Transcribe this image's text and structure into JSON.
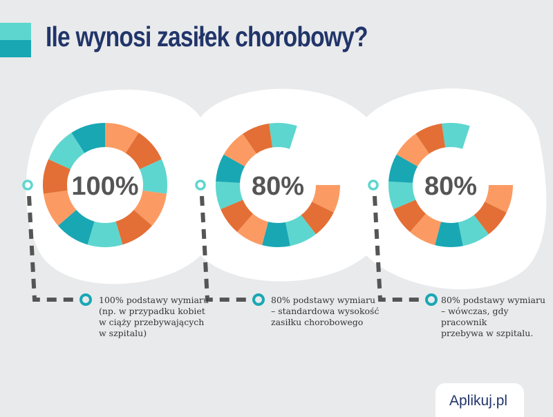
{
  "title": "Ile wynosi zasiłek chorobowy?",
  "colors": {
    "light_teal": "#5dd6cf",
    "dark_teal": "#19a7b4",
    "light_orange": "#fb9b63",
    "dark_orange": "#e36f36",
    "title": "#21356a",
    "connector": "#555555"
  },
  "charts": [
    {
      "label": "100%",
      "percent": 100,
      "description": [
        "100% podstawy wymiaru",
        "(np. w przypadku kobiet",
        "w ciąży przebywających",
        "w szpitalu)"
      ]
    },
    {
      "label": "80%",
      "percent": 80,
      "description": [
        "80% podstawy wymiaru",
        "– standardowa wysokość",
        "zasiłku chorobowego"
      ]
    },
    {
      "label": "80%",
      "percent": 80,
      "description": [
        "80% podstawy wymiaru",
        "– wówczas, gdy pracownik",
        "przebywa w szpitalu."
      ]
    }
  ],
  "brand": "Aplikuj.pl"
}
